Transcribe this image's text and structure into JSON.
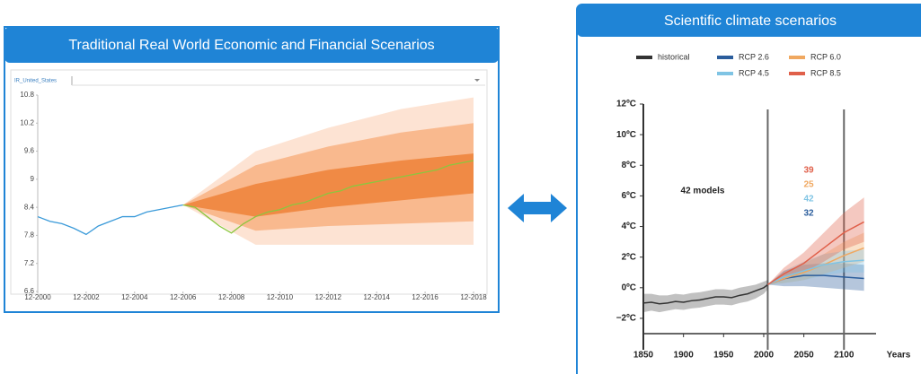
{
  "chart_data": [
    {
      "type": "fan",
      "title": "Traditional Real World Economic and Financial Scenarios",
      "selector": "IR_United_States",
      "xlim": [
        "12-2000",
        "12-2018"
      ],
      "xticks": [
        "12-2000",
        "12-2002",
        "12-2004",
        "12-2006",
        "12-2008",
        "12-2010",
        "12-2012",
        "12-2014",
        "12-2016",
        "12-2018"
      ],
      "ylim": [
        6.6,
        10.8
      ],
      "yticks": [
        6.6,
        7.2,
        7.8,
        8.4,
        9,
        9.6,
        10.2,
        10.8
      ],
      "band_x": [
        "12-2006",
        "12-2009",
        "12-2012",
        "12-2015",
        "12-2018"
      ],
      "bands": [
        {
          "color": "#fde3d3",
          "lower": [
            8.45,
            7.6,
            7.6,
            7.6,
            7.6
          ],
          "upper": [
            8.45,
            9.6,
            10.1,
            10.5,
            10.75
          ]
        },
        {
          "color": "#f9b98e",
          "lower": [
            8.45,
            7.9,
            8.0,
            8.05,
            8.1
          ],
          "upper": [
            8.45,
            9.3,
            9.7,
            10.0,
            10.2
          ]
        },
        {
          "color": "#f08a45",
          "lower": [
            8.45,
            8.2,
            8.4,
            8.55,
            8.7
          ],
          "upper": [
            8.45,
            8.9,
            9.2,
            9.4,
            9.55
          ]
        }
      ],
      "series": [
        {
          "color": "#3a9ad9",
          "x": [
            "12-2000",
            "06-2001",
            "12-2001",
            "06-2002",
            "12-2002",
            "06-2003",
            "12-2003",
            "06-2004",
            "12-2004",
            "06-2005",
            "12-2005",
            "06-2006",
            "12-2006"
          ],
          "values": [
            8.2,
            8.1,
            8.05,
            7.95,
            7.82,
            8.0,
            8.1,
            8.2,
            8.2,
            8.3,
            8.35,
            8.4,
            8.45
          ]
        },
        {
          "color": "#8cc63f",
          "x": [
            "12-2006",
            "06-2007",
            "12-2007",
            "06-2008",
            "12-2008",
            "06-2009",
            "12-2009",
            "06-2010",
            "12-2010",
            "06-2011",
            "12-2011",
            "06-2012",
            "12-2012",
            "06-2013",
            "12-2013",
            "06-2014",
            "12-2014",
            "06-2015",
            "12-2015",
            "06-2016",
            "12-2016",
            "06-2017",
            "12-2017",
            "06-2018",
            "12-2018"
          ],
          "values": [
            8.45,
            8.4,
            8.2,
            8.0,
            7.85,
            8.05,
            8.2,
            8.3,
            8.35,
            8.45,
            8.5,
            8.6,
            8.7,
            8.75,
            8.85,
            8.9,
            8.95,
            9.0,
            9.05,
            9.1,
            9.15,
            9.2,
            9.3,
            9.35,
            9.4
          ]
        }
      ]
    },
    {
      "type": "scenario",
      "title": "Scientific climate scenarios",
      "x_label": "Years",
      "annotation": "42 models",
      "xlim": [
        1850,
        2140
      ],
      "xticks": [
        1850,
        1900,
        1950,
        2000,
        2050,
        2100
      ],
      "ylim": [
        -3,
        12
      ],
      "yticks": [
        {
          "value": -2,
          "label": "−2ºC"
        },
        {
          "value": 0,
          "label": "0ºC"
        },
        {
          "value": 2,
          "label": "2ºC"
        },
        {
          "value": 4,
          "label": "4ºC"
        },
        {
          "value": 6,
          "label": "6ºC"
        },
        {
          "value": 8,
          "label": "8ºC"
        },
        {
          "value": 10,
          "label": "10ºC"
        },
        {
          "value": 12,
          "label": "12ºC"
        }
      ],
      "vlines": [
        2005,
        2100
      ],
      "series": [
        {
          "name": "historical",
          "color": "#333333",
          "x": [
            1850,
            1860,
            1870,
            1880,
            1890,
            1900,
            1910,
            1920,
            1930,
            1940,
            1950,
            1960,
            1970,
            1980,
            1990,
            2000,
            2005
          ],
          "values": [
            -1.0,
            -0.95,
            -1.05,
            -1.0,
            -0.9,
            -0.95,
            -0.85,
            -0.8,
            -0.7,
            -0.6,
            -0.6,
            -0.65,
            -0.5,
            -0.4,
            -0.2,
            0.0,
            0.2
          ],
          "lower": [
            -1.6,
            -1.5,
            -1.6,
            -1.5,
            -1.4,
            -1.45,
            -1.35,
            -1.3,
            -1.2,
            -1.1,
            -1.1,
            -1.15,
            -1.0,
            -0.9,
            -0.7,
            -0.4,
            -0.1
          ],
          "upper": [
            -0.4,
            -0.4,
            -0.5,
            -0.5,
            -0.4,
            -0.45,
            -0.35,
            -0.3,
            -0.2,
            -0.1,
            -0.1,
            -0.15,
            0.0,
            0.1,
            0.2,
            0.4,
            0.5
          ]
        },
        {
          "name": "RCP 2.6",
          "color": "#2b5d9c",
          "models": 32,
          "x": [
            2005,
            2025,
            2050,
            2075,
            2100,
            2125
          ],
          "values": [
            0.2,
            0.6,
            0.8,
            0.8,
            0.7,
            0.6
          ],
          "lower": [
            0.2,
            0.1,
            0.1,
            0.0,
            -0.1,
            -0.2
          ],
          "upper": [
            0.2,
            1.1,
            1.5,
            1.6,
            1.6,
            1.5
          ]
        },
        {
          "name": "RCP 6.0",
          "color": "#f0a860",
          "models": 25,
          "x": [
            2005,
            2025,
            2050,
            2075,
            2100,
            2125
          ],
          "values": [
            0.2,
            0.6,
            1.0,
            1.5,
            2.1,
            2.6
          ],
          "lower": [
            0.2,
            0.3,
            0.5,
            0.9,
            1.3,
            1.7
          ],
          "upper": [
            0.2,
            1.0,
            1.6,
            2.2,
            3.0,
            3.6
          ]
        },
        {
          "name": "RCP 4.5",
          "color": "#7fc4e4",
          "models": 42,
          "x": [
            2005,
            2025,
            2050,
            2075,
            2100,
            2125
          ],
          "values": [
            0.2,
            0.7,
            1.1,
            1.5,
            1.7,
            1.8
          ],
          "lower": [
            0.2,
            0.3,
            0.5,
            0.8,
            1.0,
            1.0
          ],
          "upper": [
            0.2,
            1.1,
            1.7,
            2.2,
            2.4,
            2.5
          ]
        },
        {
          "name": "RCP 8.5",
          "color": "#e0604a",
          "models": 39,
          "x": [
            2005,
            2025,
            2050,
            2075,
            2100,
            2125
          ],
          "values": [
            0.2,
            0.9,
            1.6,
            2.6,
            3.6,
            4.3
          ],
          "lower": [
            0.2,
            0.5,
            1.0,
            1.7,
            2.5,
            3.0
          ],
          "upper": [
            0.2,
            1.3,
            2.3,
            3.6,
            4.9,
            5.9
          ]
        }
      ]
    }
  ]
}
